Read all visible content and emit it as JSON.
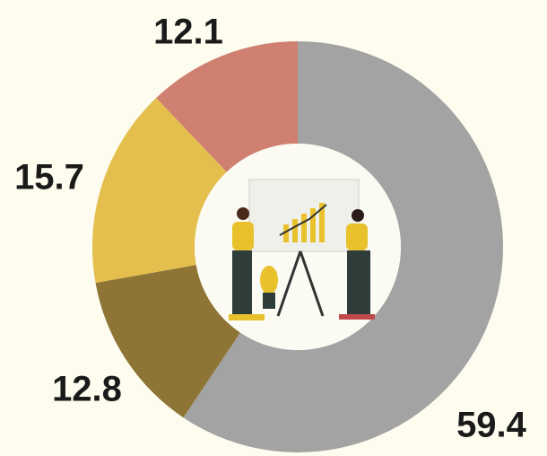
{
  "chart_data": {
    "type": "donut",
    "values": [
      59.4,
      12.8,
      15.7,
      12.1
    ],
    "colors": [
      "#a3a3a3",
      "#8e7435",
      "#e4bf4d",
      "#cf8070"
    ],
    "start_angle": 0,
    "direction": "clockwise"
  }
}
